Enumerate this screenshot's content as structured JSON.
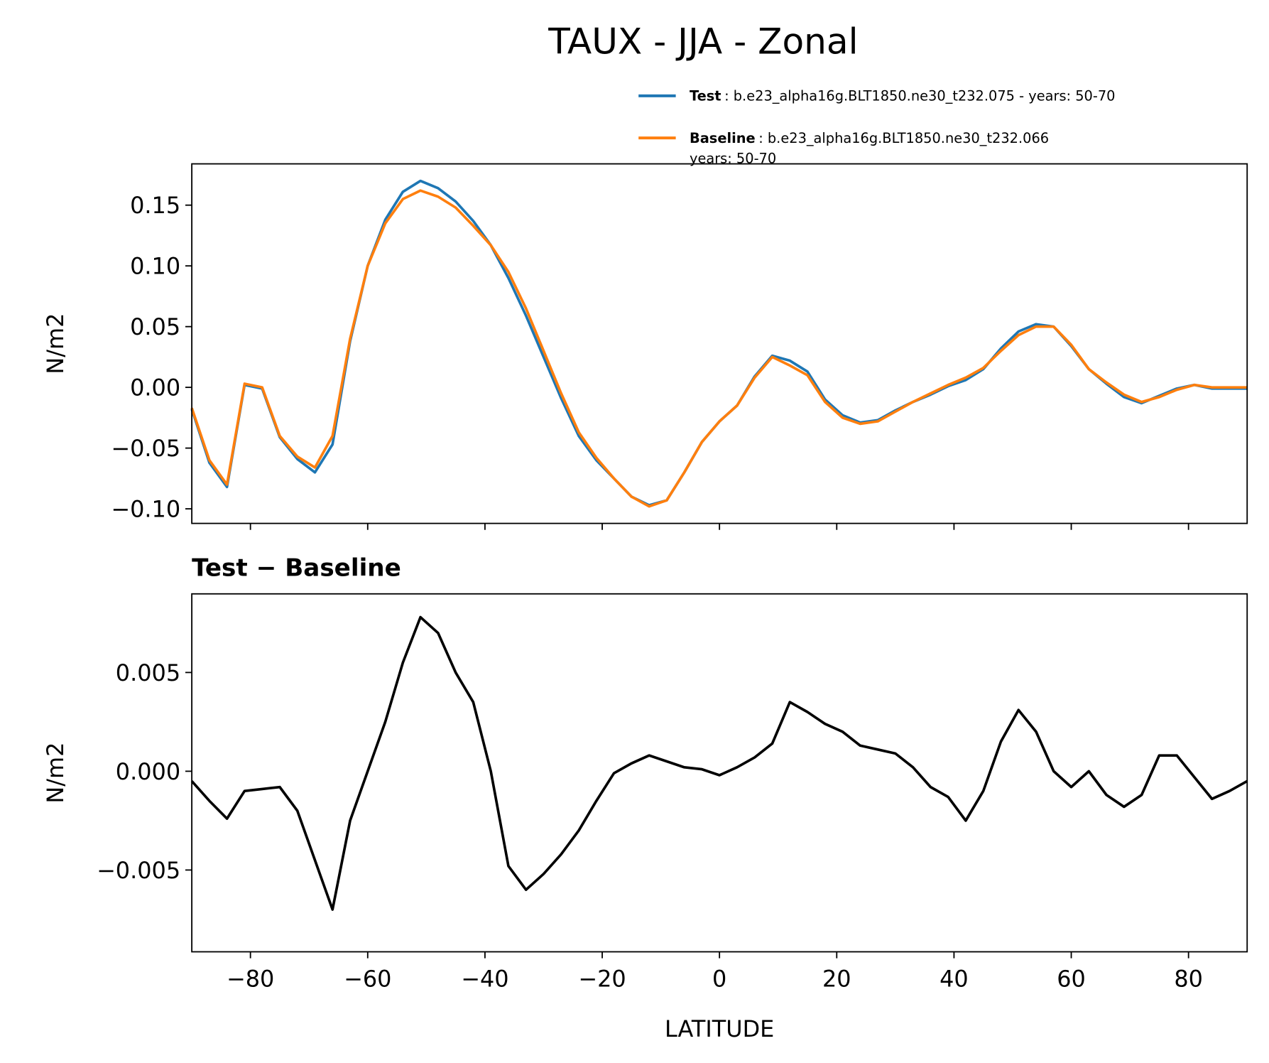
{
  "chart_data": [
    {
      "type": "line",
      "title": "TAUX - JJA - Zonal",
      "ylabel": "N/m2",
      "x": [
        -90,
        -87,
        -84,
        -81,
        -78,
        -75,
        -72,
        -69,
        -66,
        -63,
        -60,
        -57,
        -54,
        -51,
        -48,
        -45,
        -42,
        -39,
        -36,
        -33,
        -30,
        -27,
        -24,
        -21,
        -18,
        -15,
        -12,
        -9,
        -6,
        -3,
        0,
        3,
        6,
        9,
        12,
        15,
        18,
        21,
        24,
        27,
        30,
        33,
        36,
        39,
        42,
        45,
        48,
        51,
        54,
        57,
        60,
        63,
        66,
        69,
        72,
        75,
        78,
        81,
        84,
        87,
        90
      ],
      "series": [
        {
          "name": "Test",
          "description": [
            ": b.e23_alpha16g.BLT1850.ne30_t232.075 - years: 50-70"
          ],
          "color": "#1f77b4",
          "values": [
            -0.018,
            -0.062,
            -0.082,
            0.002,
            -0.001,
            -0.041,
            -0.059,
            -0.07,
            -0.047,
            0.038,
            0.1,
            0.138,
            0.161,
            0.17,
            0.164,
            0.153,
            0.137,
            0.117,
            0.09,
            0.059,
            0.025,
            -0.009,
            -0.04,
            -0.06,
            -0.075,
            -0.09,
            -0.097,
            -0.093,
            -0.07,
            -0.045,
            -0.028,
            -0.015,
            0.009,
            0.026,
            0.022,
            0.013,
            -0.01,
            -0.023,
            -0.029,
            -0.027,
            -0.019,
            -0.012,
            -0.006,
            0.001,
            0.006,
            0.015,
            0.032,
            0.046,
            0.052,
            0.05,
            0.034,
            0.015,
            0.003,
            -0.008,
            -0.013,
            -0.007,
            -0.001,
            0.002,
            -0.001,
            -0.001,
            -0.001
          ]
        },
        {
          "name": "Baseline",
          "description": [
            ": b.e23_alpha16g.BLT1850.ne30_t232.066",
            "years: 50-70"
          ],
          "color": "#ff7f0e",
          "values": [
            -0.017,
            -0.06,
            -0.08,
            0.003,
            0.0,
            -0.04,
            -0.057,
            -0.066,
            -0.04,
            0.04,
            0.1,
            0.135,
            0.155,
            0.162,
            0.157,
            0.148,
            0.133,
            0.117,
            0.095,
            0.065,
            0.03,
            -0.005,
            -0.037,
            -0.058,
            -0.075,
            -0.09,
            -0.098,
            -0.093,
            -0.07,
            -0.045,
            -0.028,
            -0.015,
            0.008,
            0.025,
            0.018,
            0.01,
            -0.012,
            -0.025,
            -0.03,
            -0.028,
            -0.02,
            -0.012,
            -0.005,
            0.002,
            0.008,
            0.016,
            0.03,
            0.043,
            0.05,
            0.05,
            0.035,
            0.015,
            0.004,
            -0.006,
            -0.012,
            -0.008,
            -0.002,
            0.002,
            0.0,
            0.0,
            0.0
          ]
        }
      ],
      "xlim": [
        -90,
        90
      ],
      "xticks": [
        -80,
        -60,
        -40,
        -20,
        0,
        20,
        40,
        60,
        80
      ],
      "show_xticklabels": false,
      "ylim": [
        -0.112,
        0.184
      ],
      "yticks": [
        {
          "value": -0.1,
          "label": "−0.10"
        },
        {
          "value": -0.05,
          "label": "−0.05"
        },
        {
          "value": 0,
          "label": "0.00"
        },
        {
          "value": 0.05,
          "label": "0.05"
        },
        {
          "value": 0.1,
          "label": "0.10"
        },
        {
          "value": 0.15,
          "label": "0.15"
        }
      ]
    },
    {
      "type": "line",
      "title": "Test − Baseline",
      "ylabel": "N/m2",
      "xlabel": "LATITUDE",
      "x": [
        -90,
        -87,
        -84,
        -81,
        -78,
        -75,
        -72,
        -69,
        -66,
        -63,
        -60,
        -57,
        -54,
        -51,
        -48,
        -45,
        -42,
        -39,
        -36,
        -33,
        -30,
        -27,
        -24,
        -21,
        -18,
        -15,
        -12,
        -9,
        -6,
        -3,
        0,
        3,
        6,
        9,
        12,
        15,
        18,
        21,
        24,
        27,
        30,
        33,
        36,
        39,
        42,
        45,
        48,
        51,
        54,
        57,
        60,
        63,
        66,
        69,
        72,
        75,
        78,
        81,
        84,
        87,
        90
      ],
      "series": [
        {
          "color": "#000000",
          "values": [
            -0.0005,
            -0.0015,
            -0.0024,
            -0.001,
            -0.0009,
            -0.0008,
            -0.002,
            -0.0045,
            -0.007,
            -0.0025,
            0.0,
            0.0025,
            0.0055,
            0.0078,
            0.007,
            0.005,
            0.0035,
            0.0,
            -0.0048,
            -0.006,
            -0.0052,
            -0.0042,
            -0.003,
            -0.0015,
            -0.0001,
            0.0004,
            0.0008,
            0.0005,
            0.0002,
            0.0001,
            -0.0002,
            0.0002,
            0.0007,
            0.0014,
            0.0035,
            0.003,
            0.0024,
            0.002,
            0.0013,
            0.0011,
            0.0009,
            0.0002,
            -0.0008,
            -0.0013,
            -0.0025,
            -0.001,
            0.0015,
            0.0031,
            0.002,
            0.0,
            -0.0008,
            0.0,
            -0.0012,
            -0.0018,
            -0.0012,
            0.0008,
            0.0008,
            -0.0003,
            -0.0014,
            -0.001,
            -0.0005
          ]
        }
      ],
      "xlim": [
        -90,
        90
      ],
      "xticks": [
        {
          "value": -80,
          "label": "−80"
        },
        {
          "value": -60,
          "label": "−60"
        },
        {
          "value": -40,
          "label": "−40"
        },
        {
          "value": -20,
          "label": "−20"
        },
        0,
        20,
        40,
        60,
        80
      ],
      "show_xticklabels": true,
      "ylim": [
        -0.00914,
        0.00898
      ],
      "yticks": [
        {
          "value": -0.005,
          "label": "−0.005"
        },
        {
          "value": 0,
          "label": "0.000"
        },
        {
          "value": 0.005,
          "label": "0.005"
        }
      ]
    }
  ]
}
